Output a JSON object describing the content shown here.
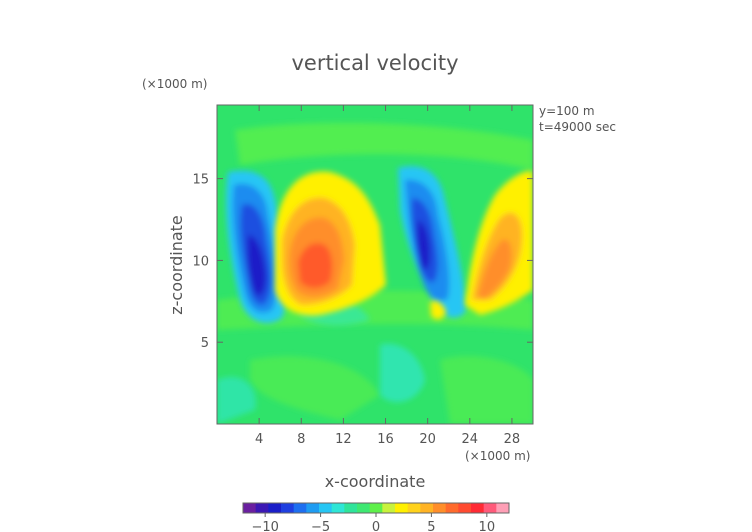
{
  "chart_data": {
    "type": "heatmap",
    "title": "vertical velocity",
    "xlabel": "x-coordinate",
    "ylabel": "z-coordinate",
    "x_unit": "(×1000 m)",
    "y_unit": "(×1000 m)",
    "annotations": [
      "y=100 m",
      "t=49000 sec"
    ],
    "xlim": [
      0,
      30
    ],
    "ylim": [
      0,
      19.5
    ],
    "x_ticks": [
      4,
      8,
      12,
      16,
      20,
      24,
      28
    ],
    "y_ticks": [
      5,
      10,
      15
    ],
    "colorbar": {
      "ticks": [
        -10,
        -5,
        0,
        5,
        10
      ],
      "range": [
        -12,
        12
      ],
      "colors": [
        "#6a1fa0",
        "#3c18b4",
        "#1a1ec8",
        "#1f3fe0",
        "#1e6ff0",
        "#1e9cf2",
        "#26c6f4",
        "#2ee6d6",
        "#2fe49a",
        "#3ee872",
        "#5ef04a",
        "#c8f23c",
        "#fff000",
        "#ffd21c",
        "#ffb324",
        "#ff8e2a",
        "#ff6a2c",
        "#ff4a30",
        "#ff2a34",
        "#ff5a7a",
        "#ff9fb6"
      ]
    },
    "features": [
      {
        "sign": "negative",
        "x_center": 4.5,
        "z_center": 10.5,
        "min_value": -10
      },
      {
        "sign": "positive",
        "x_center": 9.2,
        "z_center": 10.0,
        "max_value": 7
      },
      {
        "sign": "negative",
        "x_center": 20.2,
        "z_center": 11.0,
        "min_value": -9
      },
      {
        "sign": "positive",
        "x_center": 25.5,
        "z_center": 10.0,
        "max_value": 6
      }
    ]
  }
}
